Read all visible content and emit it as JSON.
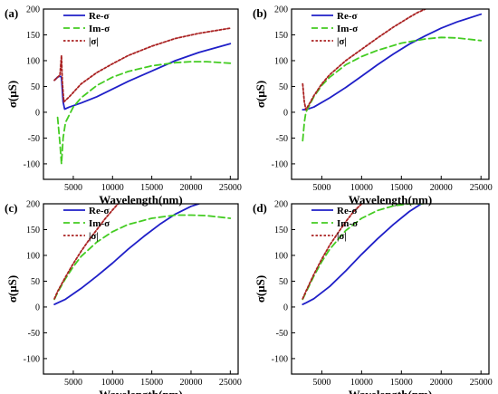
{
  "chart_data": [
    {
      "type": "line",
      "panel_label": "(a)",
      "xlabel": "Wavelength(nm)",
      "ylabel": "σ(μS)",
      "xlim": [
        1200,
        26000
      ],
      "ylim": [
        -130,
        200
      ],
      "xticks": [
        5000,
        10000,
        15000,
        20000,
        25000
      ],
      "yticks": [
        -100,
        -50,
        0,
        50,
        100,
        150,
        200
      ],
      "legend_position": "top-left",
      "series": [
        {
          "name": "Re-σ",
          "color": "#1f1fc8",
          "dash": "solid",
          "x": [
            2600,
            3000,
            3300,
            3500,
            3700,
            3900,
            4500,
            6000,
            8000,
            10000,
            12000,
            15000,
            18000,
            21000,
            25000
          ],
          "y": [
            62,
            68,
            70,
            68,
            20,
            6,
            10,
            18,
            30,
            45,
            60,
            80,
            100,
            116,
            133
          ]
        },
        {
          "name": "Im-σ",
          "color": "#44cc22",
          "dash": "dashed",
          "x": [
            3000,
            3300,
            3500,
            3700,
            4000,
            5000,
            6000,
            8000,
            10000,
            12000,
            15000,
            18000,
            20000,
            22000,
            25000
          ],
          "y": [
            -10,
            -60,
            -100,
            -50,
            -20,
            10,
            28,
            52,
            68,
            79,
            90,
            96,
            98,
            98,
            95
          ]
        },
        {
          "name": "|σ|",
          "color": "#aa2222",
          "dash": "dotted",
          "x": [
            2600,
            3000,
            3300,
            3500,
            3600,
            3800,
            4500,
            6000,
            8000,
            10000,
            12000,
            15000,
            18000,
            21000,
            25000
          ],
          "y": [
            62,
            68,
            72,
            110,
            60,
            20,
            30,
            55,
            77,
            94,
            110,
            128,
            143,
            153,
            163
          ]
        }
      ]
    },
    {
      "type": "line",
      "panel_label": "(b)",
      "xlabel": "Wavelength(nm)",
      "ylabel": "σ(μS)",
      "xlim": [
        1200,
        26000
      ],
      "ylim": [
        -130,
        200
      ],
      "xticks": [
        5000,
        10000,
        15000,
        20000,
        25000
      ],
      "yticks": [
        -100,
        -50,
        0,
        50,
        100,
        150,
        200
      ],
      "legend_position": "top-left",
      "series": [
        {
          "name": "Re-σ",
          "color": "#1f1fc8",
          "dash": "solid",
          "x": [
            2600,
            3000,
            4000,
            6000,
            8000,
            10000,
            12000,
            14000,
            16000,
            18000,
            20000,
            22000,
            25000
          ],
          "y": [
            5,
            5,
            10,
            28,
            48,
            70,
            92,
            113,
            132,
            148,
            163,
            175,
            190
          ]
        },
        {
          "name": "Im-σ",
          "color": "#44cc22",
          "dash": "dashed",
          "x": [
            2600,
            2800,
            3000,
            3500,
            4000,
            5000,
            6000,
            8000,
            10000,
            12000,
            15000,
            18000,
            20000,
            22000,
            25000
          ],
          "y": [
            -55,
            -20,
            0,
            15,
            30,
            52,
            68,
            92,
            108,
            120,
            134,
            142,
            145,
            144,
            139
          ]
        },
        {
          "name": "|σ|",
          "color": "#aa2222",
          "dash": "dotted",
          "x": [
            2600,
            2800,
            3000,
            3500,
            4000,
            5000,
            6000,
            8000,
            10000,
            12000,
            14000,
            16000,
            17000,
            18000
          ],
          "y": [
            55,
            20,
            5,
            18,
            32,
            55,
            73,
            100,
            122,
            144,
            165,
            184,
            193,
            200
          ]
        }
      ]
    },
    {
      "type": "line",
      "panel_label": "(c)",
      "xlabel": "Wavelength(nm)",
      "ylabel": "σ(μS)",
      "xlim": [
        1200,
        26000
      ],
      "ylim": [
        -130,
        200
      ],
      "xticks": [
        5000,
        10000,
        15000,
        20000,
        25000
      ],
      "yticks": [
        -100,
        -50,
        0,
        50,
        100,
        150,
        200
      ],
      "legend_position": "top-left",
      "series": [
        {
          "name": "Re-σ",
          "color": "#1f1fc8",
          "dash": "solid",
          "x": [
            2600,
            3000,
            4000,
            6000,
            8000,
            10000,
            12000,
            14000,
            16000,
            18000,
            20000,
            21000
          ],
          "y": [
            5,
            8,
            15,
            36,
            60,
            85,
            112,
            137,
            160,
            180,
            195,
            200
          ]
        },
        {
          "name": "Im-σ",
          "color": "#44cc22",
          "dash": "dashed",
          "x": [
            2600,
            3000,
            4000,
            5000,
            6000,
            8000,
            10000,
            12000,
            15000,
            18000,
            20000,
            22000,
            25000
          ],
          "y": [
            15,
            28,
            55,
            78,
            98,
            126,
            146,
            160,
            172,
            178,
            178,
            177,
            172
          ]
        },
        {
          "name": "|σ|",
          "color": "#aa2222",
          "dash": "dotted",
          "x": [
            2600,
            3000,
            4000,
            5000,
            6000,
            7000,
            8000,
            9000,
            10000,
            10700
          ],
          "y": [
            16,
            30,
            58,
            84,
            108,
            130,
            150,
            170,
            188,
            200
          ]
        }
      ]
    },
    {
      "type": "line",
      "panel_label": "(d)",
      "xlabel": "Wavelength(nm)",
      "ylabel": "σ(μS)",
      "xlim": [
        1200,
        26000
      ],
      "ylim": [
        -130,
        200
      ],
      "xticks": [
        5000,
        10000,
        15000,
        20000,
        25000
      ],
      "yticks": [
        -100,
        -50,
        0,
        50,
        100,
        150,
        200
      ],
      "legend_position": "top-left",
      "series": [
        {
          "name": "Re-σ",
          "color": "#1f1fc8",
          "dash": "solid",
          "x": [
            2600,
            3000,
            4000,
            6000,
            8000,
            10000,
            12000,
            14000,
            16000,
            17500
          ],
          "y": [
            5,
            8,
            16,
            40,
            70,
            102,
            132,
            160,
            185,
            200
          ]
        },
        {
          "name": "Im-σ",
          "color": "#44cc22",
          "dash": "dashed",
          "x": [
            2600,
            3000,
            4000,
            5000,
            6000,
            8000,
            10000,
            12000,
            14000,
            16000,
            18000
          ],
          "y": [
            15,
            28,
            60,
            88,
            112,
            148,
            172,
            187,
            196,
            200,
            200
          ]
        },
        {
          "name": "|σ|",
          "color": "#aa2222",
          "dash": "dotted",
          "x": [
            2600,
            3000,
            4000,
            5000,
            6000,
            7000,
            8000,
            9000,
            10000
          ],
          "y": [
            16,
            30,
            63,
            93,
            120,
            143,
            165,
            185,
            200
          ]
        }
      ]
    }
  ]
}
